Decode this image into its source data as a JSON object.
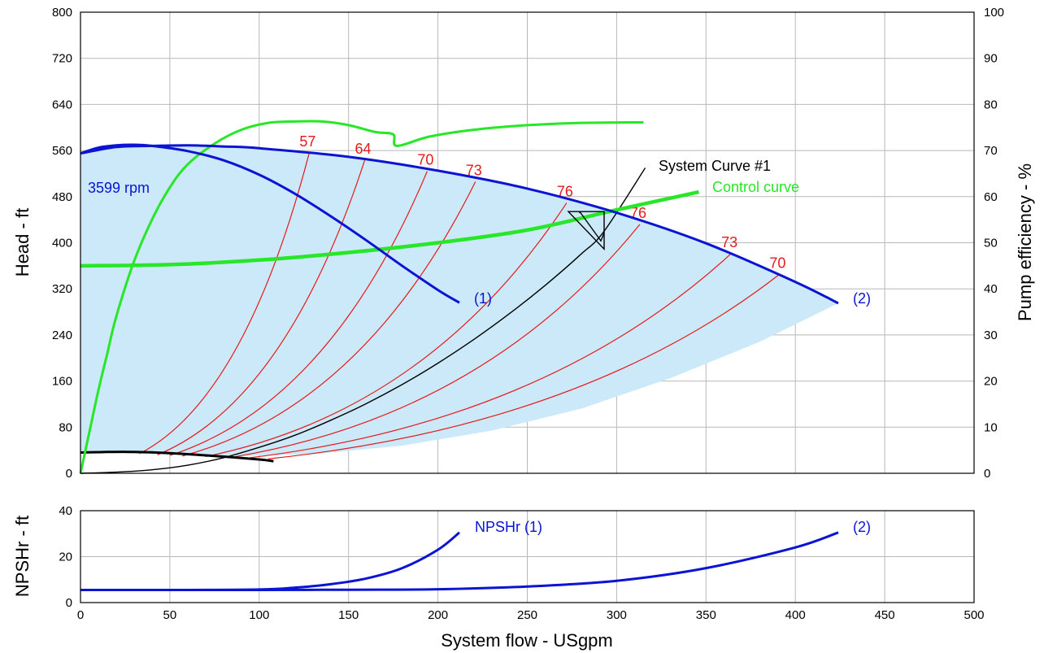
{
  "colors": {
    "pump_curve": "#0a14d2",
    "efficiency": "#e61a1a",
    "control": "#28e628",
    "system": "#000000",
    "operating_region": "#cbe9f9",
    "grid": "#b8b8b8"
  },
  "labels": {
    "head_axis": "Head - ft",
    "efficiency_axis": "Pump efficiency - %",
    "npshr_axis": "NPSHr - ft",
    "flow_axis": "System flow - USgpm",
    "speed": "3599 rpm",
    "system_curve": "System Curve #1",
    "control_curve": "Control curve",
    "curve1": "(1)",
    "curve2": "(2)",
    "npshr1": "NPSHr (1)",
    "npshr2": "(2)"
  },
  "chart_data": [
    {
      "type": "line",
      "panel": "main",
      "xlim": [
        0,
        500
      ],
      "xticks": [
        0,
        50,
        100,
        150,
        200,
        250,
        300,
        350,
        400,
        450,
        500
      ],
      "ylim": [
        0,
        800
      ],
      "yticks": [
        0,
        80,
        160,
        240,
        320,
        400,
        480,
        560,
        640,
        720,
        800
      ],
      "y2lim": [
        0,
        100
      ],
      "y2ticks": [
        0,
        10,
        20,
        30,
        40,
        50,
        60,
        70,
        80,
        90,
        100
      ],
      "grid": true,
      "series": [
        {
          "name": "(1)",
          "role": "pump-head-1",
          "x": [
            0,
            10,
            20,
            30,
            40,
            60,
            80,
            100,
            120,
            140,
            160,
            180,
            200,
            212
          ],
          "y": [
            555,
            565,
            569,
            570,
            568,
            559,
            543,
            518,
            485,
            446,
            404,
            360,
            318,
            296
          ]
        },
        {
          "name": "(2)",
          "role": "pump-head-2",
          "x": [
            0,
            20,
            40,
            60,
            80,
            100,
            150,
            200,
            250,
            300,
            350,
            400,
            424
          ],
          "y": [
            555,
            566,
            568,
            569,
            567,
            564,
            549,
            525,
            494,
            452,
            399,
            332,
            295
          ]
        },
        {
          "name": "System Curve #1",
          "role": "system",
          "x": [
            0,
            20,
            40,
            60,
            80,
            100,
            120,
            140,
            160,
            180,
            200,
            220,
            240,
            260,
            280,
            293,
            316
          ],
          "y": [
            0,
            2,
            6,
            14,
            27,
            45,
            66,
            92,
            121,
            154,
            191,
            232,
            277,
            326,
            380,
            420,
            530
          ]
        },
        {
          "name": "Control curve",
          "role": "control",
          "x": [
            0,
            50,
            100,
            150,
            200,
            250,
            300,
            346
          ],
          "y": [
            360,
            362,
            370,
            383,
            400,
            422,
            457,
            488
          ]
        },
        {
          "role": "efficiency",
          "x": [
            0,
            5,
            10,
            15,
            20,
            30,
            40,
            50,
            60,
            75,
            90,
            105,
            120,
            135,
            150,
            165,
            175,
            177,
            195,
            220,
            250,
            280,
            315
          ],
          "y2": [
            0,
            9,
            18,
            26,
            34,
            46,
            55,
            62,
            67,
            71.5,
            74.5,
            76,
            76.3,
            76.3,
            75.5,
            74,
            73.5,
            71,
            73,
            74.5,
            75.5,
            76,
            76.1
          ]
        },
        {
          "role": "shutoff-reference",
          "x": [
            0,
            15,
            30,
            50,
            75,
            100,
            108
          ],
          "y": [
            36,
            37,
            37,
            35,
            30,
            24,
            21
          ]
        }
      ],
      "efficiency_contours": [
        {
          "label": "57",
          "from": [
            33,
            34
          ],
          "to": [
            128,
            556
          ]
        },
        {
          "label": "64",
          "from": [
            43,
            32
          ],
          "to": [
            159,
            543
          ]
        },
        {
          "label": "70",
          "from": [
            50,
            31
          ],
          "to": [
            194,
            524
          ]
        },
        {
          "label": "73",
          "from": [
            57,
            30
          ],
          "to": [
            221,
            506
          ]
        },
        {
          "label": "76",
          "from": [
            70,
            29
          ],
          "to": [
            272,
            469
          ]
        },
        {
          "label": "76",
          "from": [
            85,
            28
          ],
          "to": [
            313,
            432
          ]
        },
        {
          "label": "73",
          "from": [
            95,
            27
          ],
          "to": [
            364,
            381
          ]
        },
        {
          "label": "70",
          "from": [
            105,
            25
          ],
          "to": [
            391,
            345
          ]
        }
      ],
      "operating_point": {
        "x": 293,
        "y": 454
      }
    },
    {
      "type": "line",
      "panel": "npshr",
      "xlim": [
        0,
        500
      ],
      "xticks": [
        0,
        50,
        100,
        150,
        200,
        250,
        300,
        350,
        400,
        450,
        500
      ],
      "ylim": [
        0,
        40
      ],
      "yticks": [
        0,
        20,
        40
      ],
      "grid": true,
      "series": [
        {
          "name": "NPSHr (1)",
          "x": [
            0,
            50,
            100,
            120,
            140,
            160,
            180,
            200,
            212
          ],
          "y": [
            5.5,
            5.5,
            5.7,
            6.5,
            8,
            10.5,
            15,
            23,
            30.5
          ]
        },
        {
          "name": "(2)",
          "x": [
            0,
            100,
            150,
            200,
            250,
            300,
            350,
            400,
            424
          ],
          "y": [
            5.5,
            5.5,
            5.6,
            5.8,
            7,
            9.5,
            15,
            24,
            30.5
          ]
        }
      ]
    }
  ]
}
